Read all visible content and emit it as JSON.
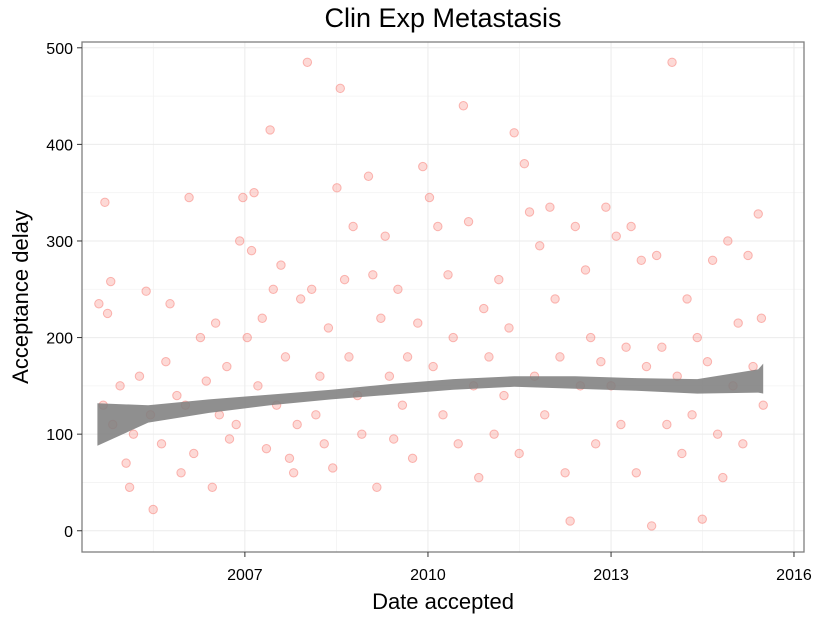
{
  "chart_data": {
    "type": "scatter",
    "title": "Clin Exp Metastasis",
    "xlabel": "Date accepted",
    "ylabel": "Acceptance delay",
    "x_axis_type": "date",
    "xlim": [
      "2004-05-01",
      "2016-03-01"
    ],
    "ylim": [
      -22,
      506
    ],
    "x_ticks": [
      "2007",
      "2010",
      "2013",
      "2016"
    ],
    "x_tick_dates": [
      "2007-01-01",
      "2010-01-01",
      "2013-01-01",
      "2016-01-01"
    ],
    "y_ticks": [
      0,
      100,
      200,
      300,
      400,
      500
    ],
    "grid": true,
    "legend": "none",
    "colors": {
      "points": "#f8766d",
      "smooth": "#808080",
      "grid": "#ebebeb",
      "frame": "#7f7f7f"
    },
    "series": [
      {
        "points": [
          [
            "2004-08-10",
            235
          ],
          [
            "2004-09-15",
            340
          ],
          [
            "2004-10-01",
            225
          ],
          [
            "2004-10-20",
            258
          ],
          [
            "2004-09-05",
            130
          ],
          [
            "2004-11-01",
            110
          ],
          [
            "2004-12-15",
            150
          ],
          [
            "2005-01-20",
            70
          ],
          [
            "2005-02-10",
            45
          ],
          [
            "2005-03-05",
            100
          ],
          [
            "2005-04-10",
            160
          ],
          [
            "2005-05-20",
            248
          ],
          [
            "2005-06-15",
            120
          ],
          [
            "2005-07-01",
            22
          ],
          [
            "2005-08-20",
            90
          ],
          [
            "2005-09-15",
            175
          ],
          [
            "2005-10-10",
            235
          ],
          [
            "2005-11-20",
            140
          ],
          [
            "2005-12-15",
            60
          ],
          [
            "2006-01-10",
            130
          ],
          [
            "2006-02-01",
            345
          ],
          [
            "2006-03-01",
            80
          ],
          [
            "2006-04-10",
            200
          ],
          [
            "2006-05-15",
            155
          ],
          [
            "2006-06-20",
            45
          ],
          [
            "2006-07-10",
            215
          ],
          [
            "2006-08-01",
            120
          ],
          [
            "2006-09-15",
            170
          ],
          [
            "2006-10-01",
            95
          ],
          [
            "2006-11-10",
            110
          ],
          [
            "2006-12-01",
            300
          ],
          [
            "2006-12-20",
            345
          ],
          [
            "2007-01-15",
            200
          ],
          [
            "2007-02-10",
            290
          ],
          [
            "2007-02-25",
            350
          ],
          [
            "2007-03-20",
            150
          ],
          [
            "2007-04-15",
            220
          ],
          [
            "2007-05-10",
            85
          ],
          [
            "2007-06-01",
            415
          ],
          [
            "2007-06-20",
            250
          ],
          [
            "2007-07-10",
            130
          ],
          [
            "2007-08-05",
            275
          ],
          [
            "2007-09-01",
            180
          ],
          [
            "2007-09-25",
            75
          ],
          [
            "2007-10-20",
            60
          ],
          [
            "2007-11-10",
            110
          ],
          [
            "2007-12-01",
            240
          ],
          [
            "2008-01-10",
            485
          ],
          [
            "2008-02-05",
            250
          ],
          [
            "2008-03-01",
            120
          ],
          [
            "2008-03-25",
            160
          ],
          [
            "2008-04-20",
            90
          ],
          [
            "2008-05-15",
            210
          ],
          [
            "2008-06-10",
            65
          ],
          [
            "2008-07-05",
            355
          ],
          [
            "2008-07-25",
            458
          ],
          [
            "2008-08-20",
            260
          ],
          [
            "2008-09-15",
            180
          ],
          [
            "2008-10-10",
            315
          ],
          [
            "2008-11-05",
            140
          ],
          [
            "2008-12-01",
            100
          ],
          [
            "2009-01-10",
            367
          ],
          [
            "2009-02-05",
            265
          ],
          [
            "2009-03-01",
            45
          ],
          [
            "2009-03-25",
            220
          ],
          [
            "2009-04-20",
            305
          ],
          [
            "2009-05-15",
            160
          ],
          [
            "2009-06-10",
            95
          ],
          [
            "2009-07-05",
            250
          ],
          [
            "2009-08-01",
            130
          ],
          [
            "2009-09-01",
            180
          ],
          [
            "2009-10-01",
            75
          ],
          [
            "2009-11-01",
            215
          ],
          [
            "2009-12-01",
            377
          ],
          [
            "2010-01-10",
            345
          ],
          [
            "2010-02-01",
            170
          ],
          [
            "2010-03-01",
            315
          ],
          [
            "2010-04-01",
            120
          ],
          [
            "2010-05-01",
            265
          ],
          [
            "2010-06-01",
            200
          ],
          [
            "2010-07-01",
            90
          ],
          [
            "2010-08-01",
            440
          ],
          [
            "2010-09-01",
            320
          ],
          [
            "2010-10-01",
            150
          ],
          [
            "2010-11-01",
            55
          ],
          [
            "2010-12-01",
            230
          ],
          [
            "2011-01-01",
            180
          ],
          [
            "2011-02-01",
            100
          ],
          [
            "2011-03-01",
            260
          ],
          [
            "2011-04-01",
            140
          ],
          [
            "2011-05-01",
            210
          ],
          [
            "2011-06-01",
            412
          ],
          [
            "2011-07-01",
            80
          ],
          [
            "2011-08-01",
            380
          ],
          [
            "2011-09-01",
            330
          ],
          [
            "2011-10-01",
            160
          ],
          [
            "2011-11-01",
            295
          ],
          [
            "2011-12-01",
            120
          ],
          [
            "2012-01-01",
            335
          ],
          [
            "2012-02-01",
            240
          ],
          [
            "2012-03-01",
            180
          ],
          [
            "2012-04-01",
            60
          ],
          [
            "2012-05-01",
            10
          ],
          [
            "2012-06-01",
            315
          ],
          [
            "2012-07-01",
            150
          ],
          [
            "2012-08-01",
            270
          ],
          [
            "2012-09-01",
            200
          ],
          [
            "2012-10-01",
            90
          ],
          [
            "2012-11-01",
            175
          ],
          [
            "2012-12-01",
            335
          ],
          [
            "2013-01-01",
            150
          ],
          [
            "2013-02-01",
            305
          ],
          [
            "2013-03-01",
            110
          ],
          [
            "2013-04-01",
            190
          ],
          [
            "2013-05-01",
            315
          ],
          [
            "2013-06-01",
            60
          ],
          [
            "2013-07-01",
            280
          ],
          [
            "2013-08-01",
            170
          ],
          [
            "2013-09-01",
            5
          ],
          [
            "2013-10-01",
            285
          ],
          [
            "2013-11-01",
            190
          ],
          [
            "2013-12-01",
            110
          ],
          [
            "2014-01-01",
            485
          ],
          [
            "2014-02-01",
            160
          ],
          [
            "2014-03-01",
            80
          ],
          [
            "2014-04-01",
            240
          ],
          [
            "2014-05-01",
            120
          ],
          [
            "2014-06-01",
            200
          ],
          [
            "2014-07-01",
            12
          ],
          [
            "2014-08-01",
            175
          ],
          [
            "2014-09-01",
            280
          ],
          [
            "2014-10-01",
            100
          ],
          [
            "2014-11-01",
            55
          ],
          [
            "2014-12-01",
            300
          ],
          [
            "2015-01-01",
            150
          ],
          [
            "2015-02-01",
            215
          ],
          [
            "2015-03-01",
            90
          ],
          [
            "2015-04-01",
            285
          ],
          [
            "2015-05-01",
            170
          ],
          [
            "2015-06-01",
            328
          ],
          [
            "2015-06-20",
            220
          ],
          [
            "2015-07-01",
            130
          ]
        ]
      }
    ],
    "smooth_band": {
      "x": [
        "2004-08-01",
        "2005-06-01",
        "2006-06-01",
        "2007-06-01",
        "2008-06-01",
        "2009-06-01",
        "2010-06-01",
        "2011-06-01",
        "2012-06-01",
        "2013-06-01",
        "2014-06-01",
        "2015-06-01",
        "2015-07-01"
      ],
      "lower": [
        88,
        112,
        122,
        130,
        136,
        141,
        146,
        149,
        147,
        145,
        142,
        143,
        142
      ],
      "upper": [
        132,
        130,
        136,
        141,
        146,
        152,
        157,
        160,
        160,
        158,
        157,
        167,
        173
      ]
    }
  }
}
